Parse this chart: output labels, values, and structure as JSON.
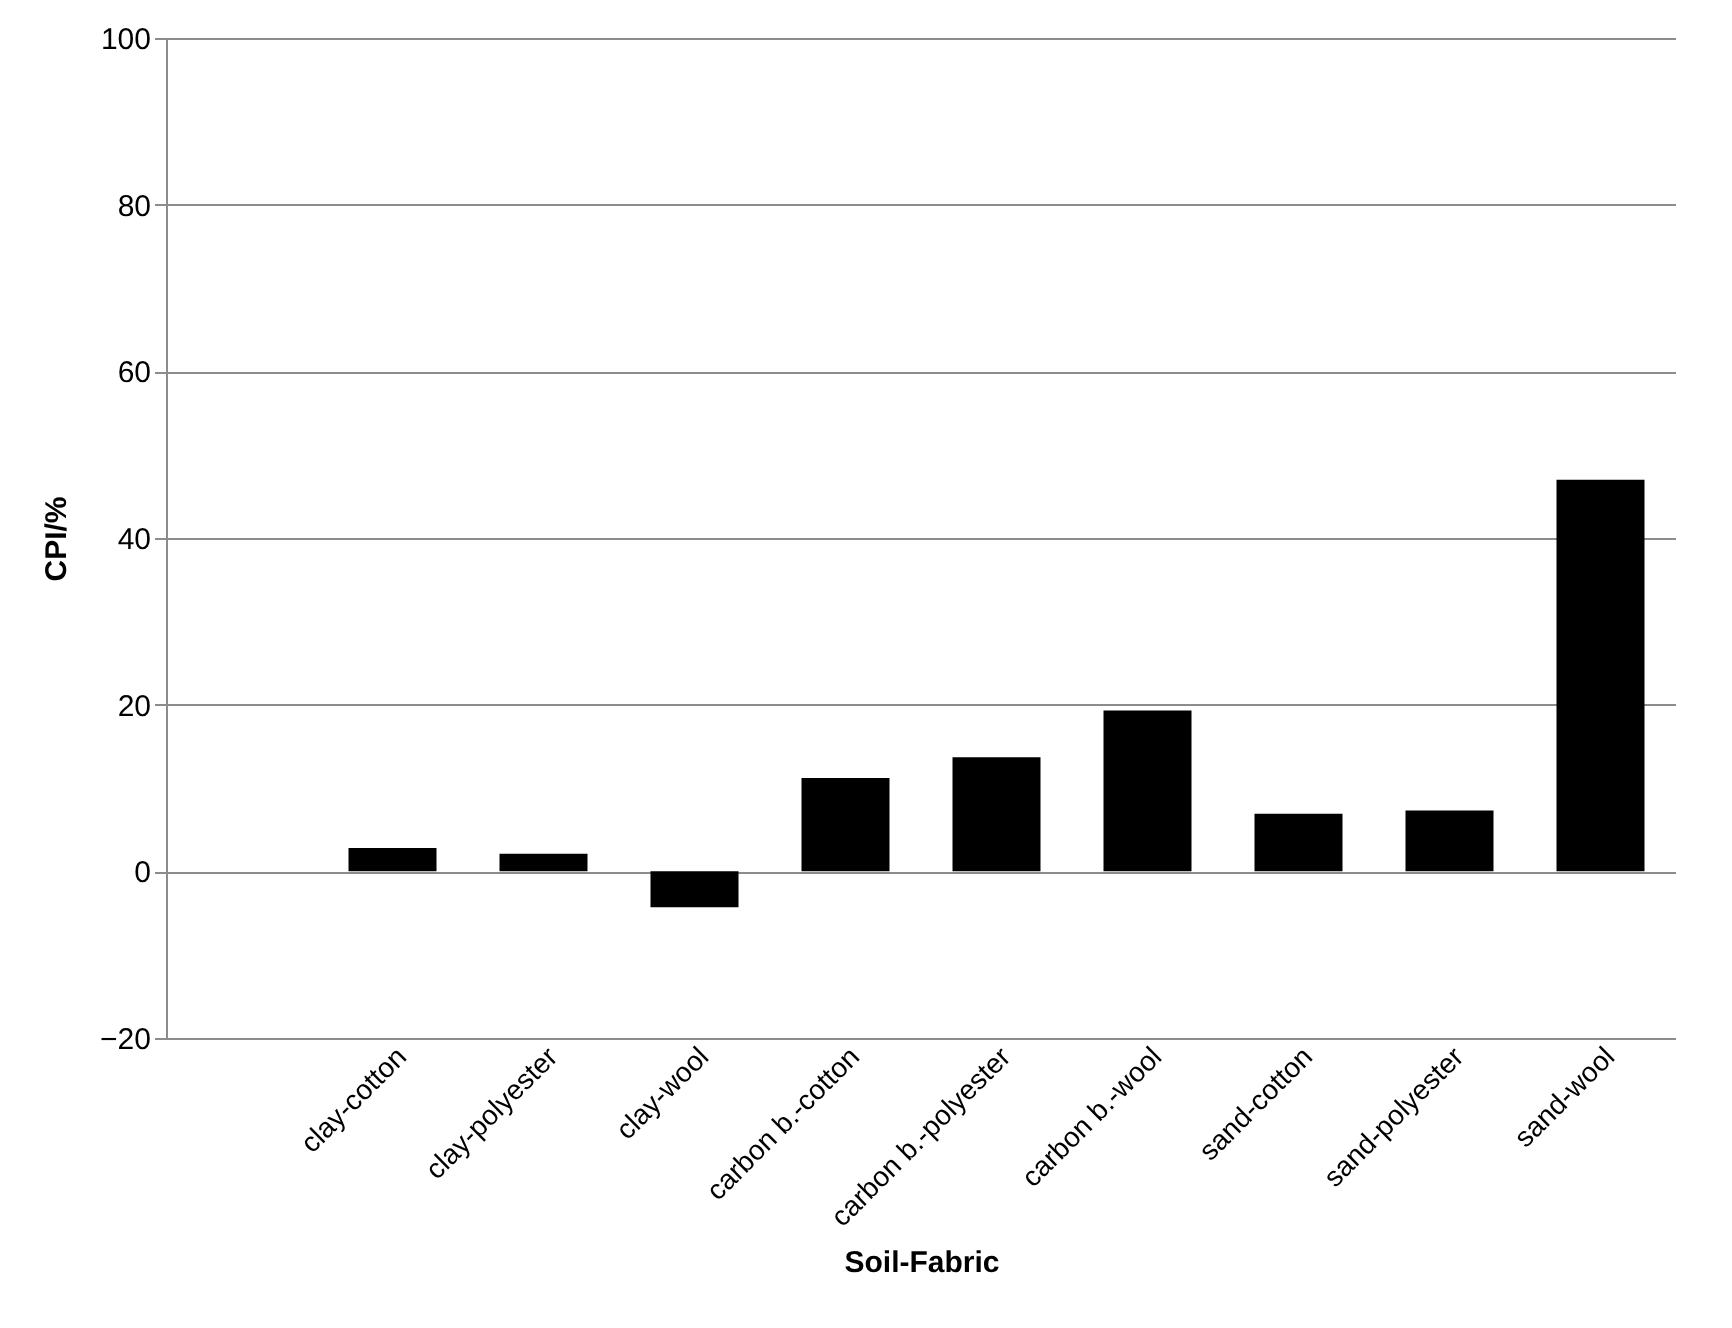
{
  "chart_data": {
    "type": "bar",
    "xlabel": "Soil-Fabric",
    "ylabel": "CPI/%",
    "categories": [
      null,
      "clay-cotton",
      "clay-polyester",
      "clay-wool",
      "carbon b.-cotton",
      "carbon b.-polyester",
      "carbon b.-wool",
      "sand-cotton",
      "sand-polyester",
      "sand-wool"
    ],
    "values": [
      null,
      2.8,
      2.1,
      -4.3,
      11.2,
      13.7,
      19.3,
      6.9,
      7.3,
      47
    ],
    "color": "#000000",
    "ylim": [
      -20,
      100
    ],
    "yticks": [
      -20,
      0,
      20,
      40,
      60,
      80,
      100
    ],
    "grid": "y"
  }
}
